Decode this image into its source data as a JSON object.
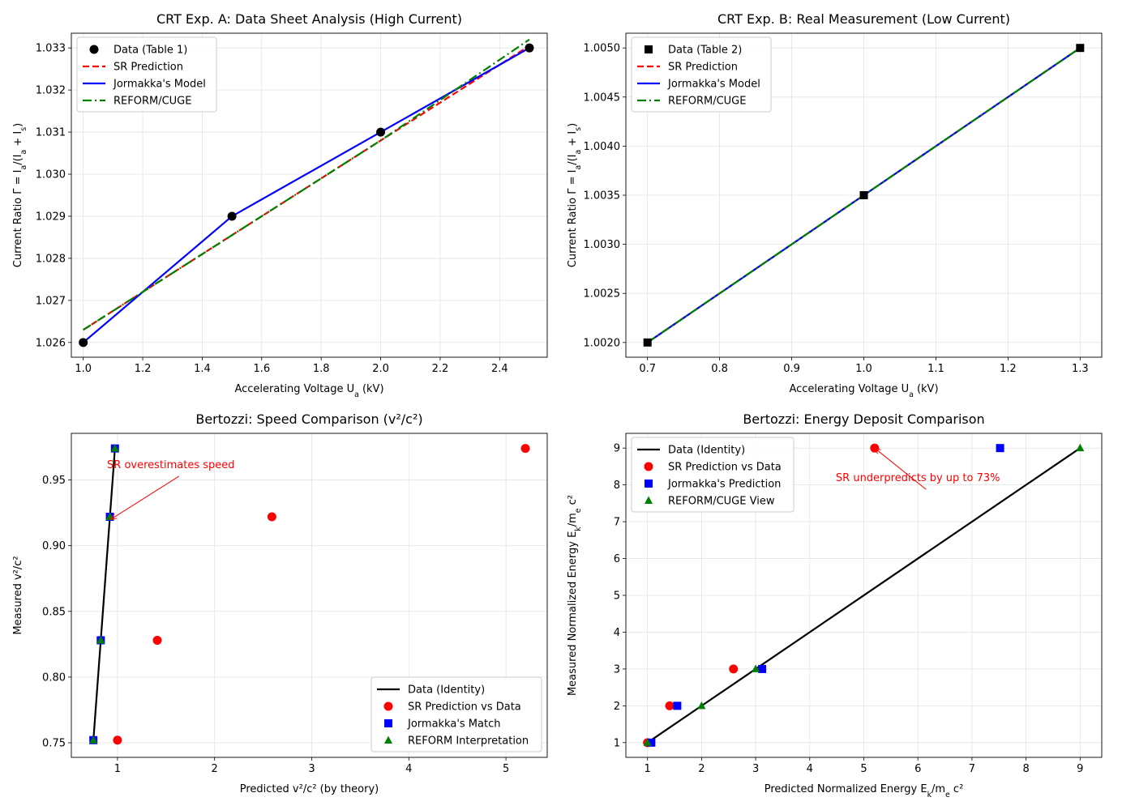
{
  "chart_data": [
    {
      "id": "p1",
      "type": "line",
      "title": "CRT Exp. A: Data Sheet Analysis (High Current)",
      "xlabel": "Accelerating Voltage U_a (kV)",
      "ylabel": "Current Ratio Γ = I_a/(I_a + I_s)",
      "xlim": [
        0.96,
        2.56
      ],
      "ylim": [
        1.02565,
        1.03335
      ],
      "xticks": [
        1.0,
        1.2,
        1.4,
        1.6,
        1.8,
        2.0,
        2.2,
        2.4
      ],
      "xtick_labels": [
        "1.0",
        "1.2",
        "1.4",
        "1.6",
        "1.8",
        "2.0",
        "2.2",
        "2.4"
      ],
      "yticks": [
        1.026,
        1.027,
        1.028,
        1.029,
        1.03,
        1.031,
        1.032,
        1.033
      ],
      "ytick_labels": [
        "1.026",
        "1.027",
        "1.028",
        "1.029",
        "1.030",
        "1.031",
        "1.032",
        "1.033"
      ],
      "grid": true,
      "legend_position": "top-left",
      "series": [
        {
          "name": "Data (Table 1)",
          "kind": "marker",
          "marker": "circle",
          "color": "#000000",
          "x": [
            1.0,
            1.5,
            2.0,
            2.5
          ],
          "y": [
            1.026,
            1.029,
            1.031,
            1.033
          ]
        },
        {
          "name": "SR Prediction",
          "kind": "line",
          "dash": "dashed",
          "color": "#ff0000",
          "x": [
            1.0,
            1.5,
            2.0,
            2.5
          ],
          "y": [
            1.0263,
            1.02855,
            1.0308,
            1.03305
          ]
        },
        {
          "name": "Jormakka's Model",
          "kind": "line",
          "dash": "solid",
          "color": "#0000ff",
          "x": [
            1.0,
            1.5,
            2.0,
            2.5
          ],
          "y": [
            1.026,
            1.029,
            1.031,
            1.033
          ]
        },
        {
          "name": "REFORM/CUGE",
          "kind": "line",
          "dash": "dashdot",
          "color": "#008000",
          "x": [
            1.0,
            1.5,
            2.0,
            2.5
          ],
          "y": [
            1.0263,
            1.02855,
            1.0308,
            1.0332
          ]
        }
      ]
    },
    {
      "id": "p2",
      "type": "line",
      "title": "CRT Exp. B: Real Measurement (Low Current)",
      "xlabel": "Accelerating Voltage U_a (kV)",
      "ylabel": "Current Ratio Γ = I_a/(I_a + I_s)",
      "xlim": [
        0.67,
        1.33
      ],
      "ylim": [
        1.00185,
        1.00515
      ],
      "xticks": [
        0.7,
        0.8,
        0.9,
        1.0,
        1.1,
        1.2,
        1.3
      ],
      "xtick_labels": [
        "0.7",
        "0.8",
        "0.9",
        "1.0",
        "1.1",
        "1.2",
        "1.3"
      ],
      "yticks": [
        1.002,
        1.0025,
        1.003,
        1.0035,
        1.004,
        1.0045,
        1.005
      ],
      "ytick_labels": [
        "1.0020",
        "1.0025",
        "1.0030",
        "1.0035",
        "1.0040",
        "1.0045",
        "1.0050"
      ],
      "grid": true,
      "legend_position": "top-left",
      "series": [
        {
          "name": "Data (Table 2)",
          "kind": "marker",
          "marker": "square",
          "color": "#000000",
          "x": [
            0.7,
            1.0,
            1.3
          ],
          "y": [
            1.002,
            1.0035,
            1.005
          ]
        },
        {
          "name": "SR Prediction",
          "kind": "line",
          "dash": "dashed",
          "color": "#ff0000",
          "x": [
            0.7,
            1.0,
            1.3
          ],
          "y": [
            1.002,
            1.0035,
            1.005
          ]
        },
        {
          "name": "Jormakka's Model",
          "kind": "line",
          "dash": "solid",
          "color": "#0000ff",
          "x": [
            0.7,
            1.0,
            1.3
          ],
          "y": [
            1.002,
            1.0035,
            1.005
          ]
        },
        {
          "name": "REFORM/CUGE",
          "kind": "line",
          "dash": "dashdot",
          "color": "#008000",
          "x": [
            0.7,
            1.0,
            1.3
          ],
          "y": [
            1.002,
            1.0035,
            1.005
          ]
        }
      ]
    },
    {
      "id": "p3",
      "type": "scatter",
      "title": "Bertozzi: Speed Comparison (v²/c²)",
      "xlabel": "Predicted v²/c² (by theory)",
      "ylabel": "Measured v²/c²",
      "xlim": [
        0.525,
        5.425
      ],
      "ylim": [
        0.7389,
        0.9855
      ],
      "xticks": [
        1,
        2,
        3,
        4,
        5
      ],
      "xtick_labels": [
        "1",
        "2",
        "3",
        "4",
        "5"
      ],
      "yticks": [
        0.75,
        0.8,
        0.85,
        0.9,
        0.95
      ],
      "ytick_labels": [
        "0.75",
        "0.80",
        "0.85",
        "0.90",
        "0.95"
      ],
      "grid": true,
      "legend_position": "bottom-right",
      "series": [
        {
          "name": "Data (Identity)",
          "kind": "line",
          "dash": "solid",
          "color": "#000000",
          "x": [
            0.752,
            0.828,
            0.922,
            0.974
          ],
          "y": [
            0.752,
            0.828,
            0.922,
            0.974
          ]
        },
        {
          "name": "SR Prediction vs Data",
          "kind": "marker",
          "marker": "circle",
          "color": "#ff0000",
          "x": [
            1.0,
            1.41,
            2.59,
            5.2
          ],
          "y": [
            0.752,
            0.828,
            0.922,
            0.974
          ]
        },
        {
          "name": "Jormakka's Match",
          "kind": "marker",
          "marker": "square",
          "color": "#0000ff",
          "x": [
            0.752,
            0.828,
            0.922,
            0.974
          ],
          "y": [
            0.752,
            0.828,
            0.922,
            0.974
          ]
        },
        {
          "name": "REFORM Interpretation",
          "kind": "marker",
          "marker": "triangle",
          "color": "#008000",
          "x": [
            0.752,
            0.828,
            0.922,
            0.974
          ],
          "y": [
            0.752,
            0.828,
            0.922,
            0.974
          ]
        }
      ],
      "annotations": [
        {
          "text": "SR overestimates speed",
          "color": "#ff0000",
          "text_x": 1.55,
          "text_y": 0.959,
          "point_x": 0.93,
          "point_y": 0.92
        }
      ]
    },
    {
      "id": "p4",
      "type": "scatter",
      "title": "Bertozzi: Energy Deposit Comparison",
      "xlabel": "Predicted Normalized Energy E_k/m_e c²",
      "ylabel": "Measured Normalized Energy E_k/m_e c²",
      "xlim": [
        0.6,
        9.4
      ],
      "ylim": [
        0.6,
        9.4
      ],
      "xticks": [
        1,
        2,
        3,
        4,
        5,
        6,
        7,
        8,
        9
      ],
      "xtick_labels": [
        "1",
        "2",
        "3",
        "4",
        "5",
        "6",
        "7",
        "8",
        "9"
      ],
      "yticks": [
        1,
        2,
        3,
        4,
        5,
        6,
        7,
        8,
        9
      ],
      "ytick_labels": [
        "1",
        "2",
        "3",
        "4",
        "5",
        "6",
        "7",
        "8",
        "9"
      ],
      "grid": true,
      "legend_position": "top-left",
      "series": [
        {
          "name": "Data (Identity)",
          "kind": "line",
          "dash": "solid",
          "color": "#000000",
          "x": [
            1,
            2,
            3,
            9
          ],
          "y": [
            1,
            2,
            3,
            9
          ]
        },
        {
          "name": "SR Prediction vs Data",
          "kind": "marker",
          "marker": "circle",
          "color": "#ff0000",
          "x": [
            1.0,
            1.41,
            2.59,
            5.2
          ],
          "y": [
            1,
            2,
            3,
            9
          ]
        },
        {
          "name": "Jormakka's Prediction",
          "kind": "marker",
          "marker": "square",
          "color": "#0000ff",
          "x": [
            1.07,
            1.55,
            3.12,
            7.52
          ],
          "y": [
            1,
            2,
            3,
            9
          ]
        },
        {
          "name": "REFORM/CUGE View",
          "kind": "marker",
          "marker": "triangle",
          "color": "#008000",
          "x": [
            1,
            2,
            3,
            9
          ],
          "y": [
            1,
            2,
            3,
            9
          ]
        }
      ],
      "annotations": [
        {
          "text": "SR underpredicts by up to 73%",
          "color": "#ff0000",
          "text_x": 6.0,
          "text_y": 8.1,
          "point_x": 5.2,
          "point_y": 9.0
        }
      ]
    }
  ]
}
